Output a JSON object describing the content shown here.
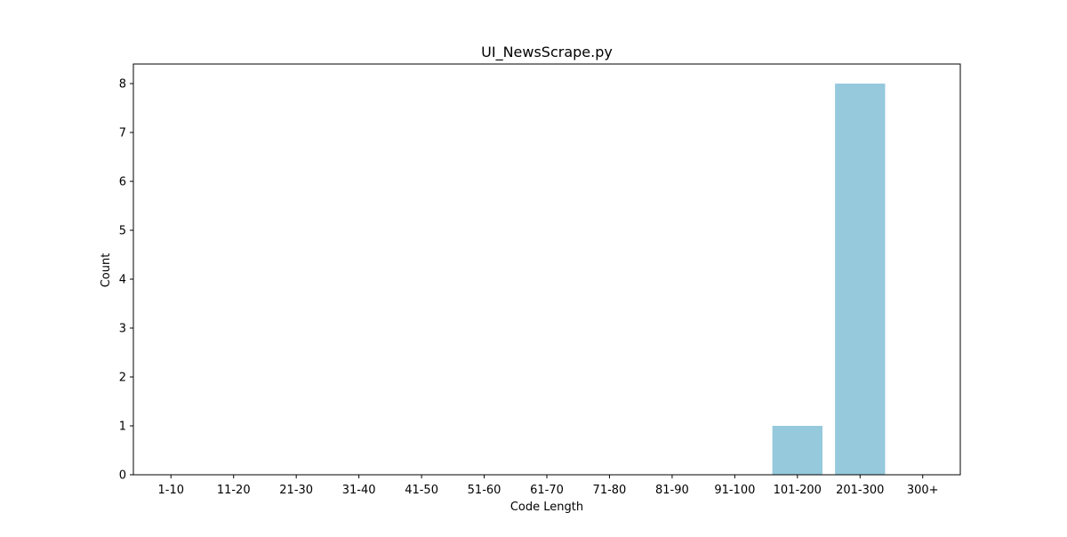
{
  "chart_data": {
    "type": "bar",
    "title": "UI_NewsScrape.py",
    "xlabel": "Code Length",
    "ylabel": "Count",
    "categories": [
      "1-10",
      "11-20",
      "21-30",
      "31-40",
      "41-50",
      "51-60",
      "61-70",
      "71-80",
      "81-90",
      "91-100",
      "101-200",
      "201-300",
      "300+"
    ],
    "values": [
      0,
      0,
      0,
      0,
      0,
      0,
      0,
      0,
      0,
      0,
      1,
      8,
      0
    ],
    "ylim": [
      0,
      8.4
    ],
    "yticks": [
      0,
      1,
      2,
      3,
      4,
      5,
      6,
      7,
      8
    ],
    "bar_color": "#96c9dc",
    "grid": false,
    "legend": "none"
  }
}
